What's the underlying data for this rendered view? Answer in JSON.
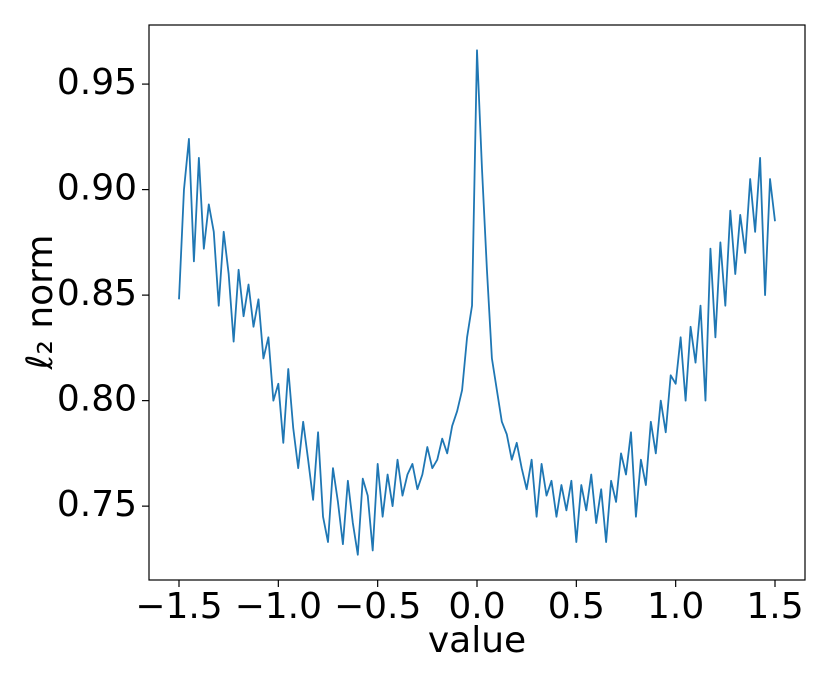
{
  "chart_data": {
    "type": "line",
    "x_label": "value",
    "y_label": "ℓ₂ norm",
    "x": [
      -1.5,
      -1.475,
      -1.45,
      -1.425,
      -1.4,
      -1.375,
      -1.35,
      -1.325,
      -1.3,
      -1.275,
      -1.25,
      -1.225,
      -1.2,
      -1.175,
      -1.15,
      -1.125,
      -1.1,
      -1.075,
      -1.05,
      -1.025,
      -1.0,
      -0.975,
      -0.95,
      -0.925,
      -0.9,
      -0.875,
      -0.85,
      -0.825,
      -0.8,
      -0.775,
      -0.75,
      -0.725,
      -0.7,
      -0.675,
      -0.65,
      -0.625,
      -0.6,
      -0.575,
      -0.55,
      -0.525,
      -0.5,
      -0.475,
      -0.45,
      -0.425,
      -0.4,
      -0.375,
      -0.35,
      -0.325,
      -0.3,
      -0.275,
      -0.25,
      -0.225,
      -0.2,
      -0.175,
      -0.15,
      -0.125,
      -0.1,
      -0.075,
      -0.05,
      -0.025,
      0.0,
      0.025,
      0.05,
      0.075,
      0.1,
      0.125,
      0.15,
      0.175,
      0.2,
      0.225,
      0.25,
      0.275,
      0.3,
      0.325,
      0.35,
      0.375,
      0.4,
      0.425,
      0.45,
      0.475,
      0.5,
      0.525,
      0.55,
      0.575,
      0.6,
      0.625,
      0.65,
      0.675,
      0.7,
      0.725,
      0.75,
      0.775,
      0.8,
      0.825,
      0.85,
      0.875,
      0.9,
      0.925,
      0.95,
      0.975,
      1.0,
      1.025,
      1.05,
      1.075,
      1.1,
      1.125,
      1.15,
      1.175,
      1.2,
      1.225,
      1.25,
      1.275,
      1.3,
      1.325,
      1.35,
      1.375,
      1.4,
      1.425,
      1.45,
      1.475,
      1.5
    ],
    "series": [
      {
        "color": "#1f77b4",
        "values": [
          0.848,
          0.9,
          0.924,
          0.866,
          0.915,
          0.872,
          0.893,
          0.88,
          0.845,
          0.88,
          0.86,
          0.828,
          0.862,
          0.84,
          0.855,
          0.835,
          0.848,
          0.82,
          0.83,
          0.8,
          0.808,
          0.78,
          0.815,
          0.787,
          0.768,
          0.79,
          0.772,
          0.753,
          0.785,
          0.745,
          0.733,
          0.768,
          0.752,
          0.732,
          0.762,
          0.742,
          0.727,
          0.763,
          0.755,
          0.729,
          0.77,
          0.745,
          0.765,
          0.75,
          0.772,
          0.755,
          0.765,
          0.77,
          0.758,
          0.765,
          0.778,
          0.768,
          0.772,
          0.782,
          0.775,
          0.788,
          0.795,
          0.805,
          0.83,
          0.845,
          0.966,
          0.91,
          0.862,
          0.82,
          0.805,
          0.79,
          0.784,
          0.772,
          0.78,
          0.768,
          0.758,
          0.772,
          0.745,
          0.77,
          0.755,
          0.762,
          0.745,
          0.76,
          0.748,
          0.762,
          0.733,
          0.76,
          0.748,
          0.765,
          0.742,
          0.758,
          0.733,
          0.762,
          0.752,
          0.775,
          0.765,
          0.785,
          0.745,
          0.772,
          0.76,
          0.79,
          0.775,
          0.8,
          0.785,
          0.812,
          0.808,
          0.83,
          0.8,
          0.835,
          0.818,
          0.845,
          0.8,
          0.872,
          0.83,
          0.875,
          0.845,
          0.89,
          0.86,
          0.888,
          0.87,
          0.905,
          0.88,
          0.915,
          0.85,
          0.905,
          0.885
        ]
      }
    ],
    "xlim": [
      -1.651,
      1.651
    ],
    "ylim": [
      0.715,
      0.978
    ],
    "xticks": [
      {
        "value": -1.5,
        "label": "−1.5"
      },
      {
        "value": -1.0,
        "label": "−1.0"
      },
      {
        "value": -0.5,
        "label": "−0.5"
      },
      {
        "value": 0,
        "label": "0.0"
      },
      {
        "value": 0.5,
        "label": "0.5"
      },
      {
        "value": 1.0,
        "label": "1.0"
      },
      {
        "value": 1.5,
        "label": "1.5"
      }
    ],
    "yticks": [
      0.75,
      {
        "value": 0.8,
        "label": "0.80"
      },
      0.85,
      {
        "value": 0.9,
        "label": "0.90"
      },
      0.95
    ],
    "grid": false
  }
}
